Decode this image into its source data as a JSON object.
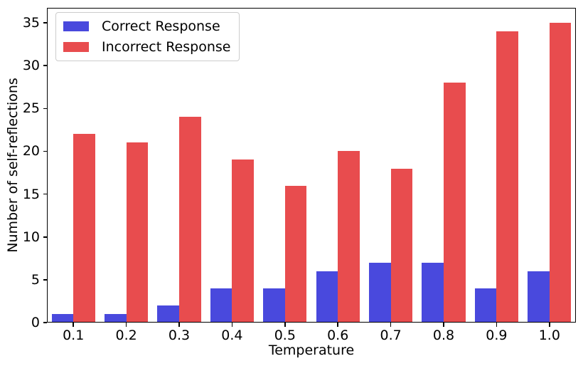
{
  "chart_data": {
    "type": "bar",
    "title": "",
    "xlabel": "Temperature",
    "ylabel": "Number of self-reflections",
    "categories": [
      "0.1",
      "0.2",
      "0.3",
      "0.4",
      "0.5",
      "0.6",
      "0.7",
      "0.8",
      "0.9",
      "1.0"
    ],
    "series": [
      {
        "name": "Correct Response",
        "color": "#4949dd",
        "values": [
          1,
          1,
          2,
          4,
          4,
          6,
          7,
          7,
          4,
          6
        ]
      },
      {
        "name": "Incorrect Response",
        "color": "#e84c4e",
        "values": [
          22,
          21,
          24,
          19,
          16,
          20,
          18,
          28,
          34,
          35
        ]
      }
    ],
    "ylim": [
      0,
      36.75
    ],
    "yticks": [
      0,
      5,
      10,
      15,
      20,
      25,
      30,
      35
    ],
    "grid": false,
    "legend_position": "upper left",
    "bar_width_fraction": 0.41
  },
  "colors": {
    "background": "#ffffff",
    "spine": "#000000",
    "legend_border": "#cccccc"
  }
}
